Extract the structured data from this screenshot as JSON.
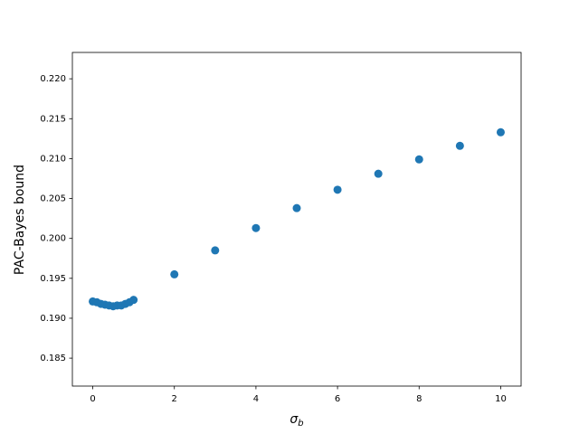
{
  "chart_data": {
    "type": "scatter",
    "x_label": "σb",
    "y_label": "PAC-Bayes bound",
    "x": [
      0,
      0.1,
      0.2,
      0.3,
      0.4,
      0.5,
      0.6,
      0.7,
      0.8,
      0.9,
      1.0,
      2,
      3,
      4,
      5,
      6,
      7,
      8,
      9,
      10
    ],
    "values": [
      0.1921,
      0.192,
      0.1918,
      0.1917,
      0.1916,
      0.1915,
      0.1916,
      0.1916,
      0.1918,
      0.192,
      0.1923,
      0.1955,
      0.1985,
      0.2013,
      0.2038,
      0.2061,
      0.2081,
      0.2099,
      0.2116,
      0.2133
    ],
    "color": "#1f77b4",
    "xlim": [
      -0.5,
      10.5
    ],
    "xticks": [
      0,
      2,
      4,
      6,
      8,
      10
    ],
    "ylim": [
      0.1815,
      0.2233
    ],
    "yticks": [
      0.185,
      {
        "value": 0.19,
        "label": "0.190"
      },
      0.195,
      {
        "value": 0.2,
        "label": "0.200"
      },
      0.205,
      {
        "value": 0.21,
        "label": "0.210"
      },
      0.215,
      {
        "value": 0.22,
        "label": "0.220"
      }
    ],
    "grid": false
  }
}
